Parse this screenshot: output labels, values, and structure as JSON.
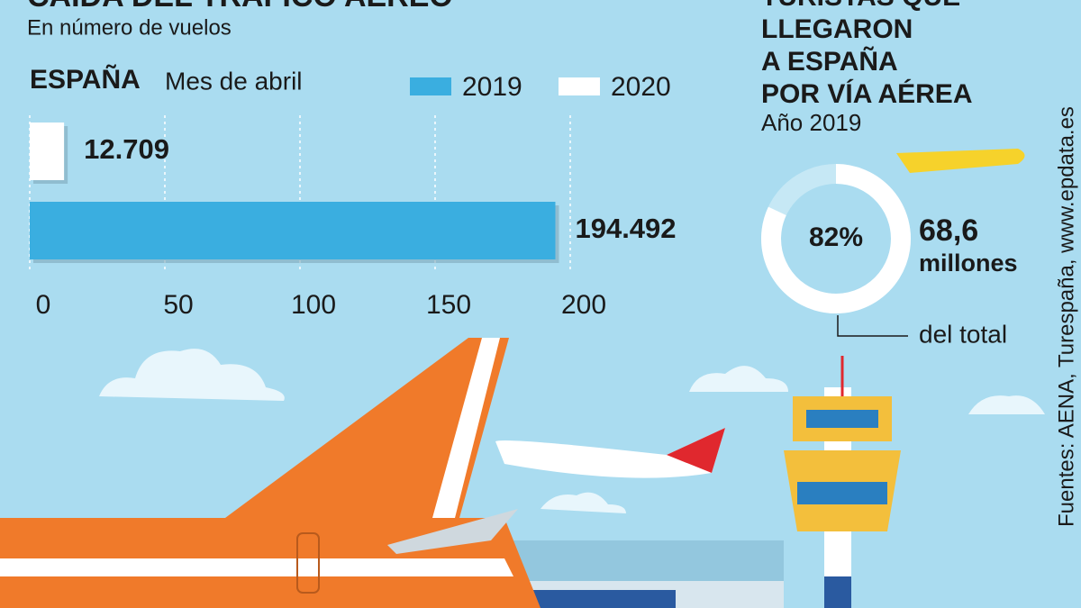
{
  "chart_data": [
    {
      "type": "hbar",
      "title": "CAÍDA DEL TRÁFICO AÉREO",
      "subtitle": "En número de vuelos",
      "categories": [
        "ESPAÑA"
      ],
      "period": "Mes de abril",
      "series": [
        {
          "name": "2019",
          "color": "#3aaee0",
          "values": [
            194.492
          ]
        },
        {
          "name": "2020",
          "color": "#ffffff",
          "values": [
            12.709
          ]
        }
      ],
      "xlim": [
        0,
        200
      ],
      "xticks": [
        0,
        50,
        100,
        150,
        200
      ],
      "grid": true
    },
    {
      "type": "donut",
      "title_lines": [
        "TURISTAS QUE",
        "LLEGARON",
        "A ESPAÑA",
        "POR VÍA AÉREA"
      ],
      "subtitle": "Año 2019",
      "values": [
        82
      ],
      "value_labels": [
        "82%"
      ],
      "color": "#ffffff",
      "annotation": "68,6",
      "annotation_unit": "millones",
      "note": "del total"
    }
  ],
  "source": "Fuentes: AENA, Turespaña, www.epdata.es"
}
